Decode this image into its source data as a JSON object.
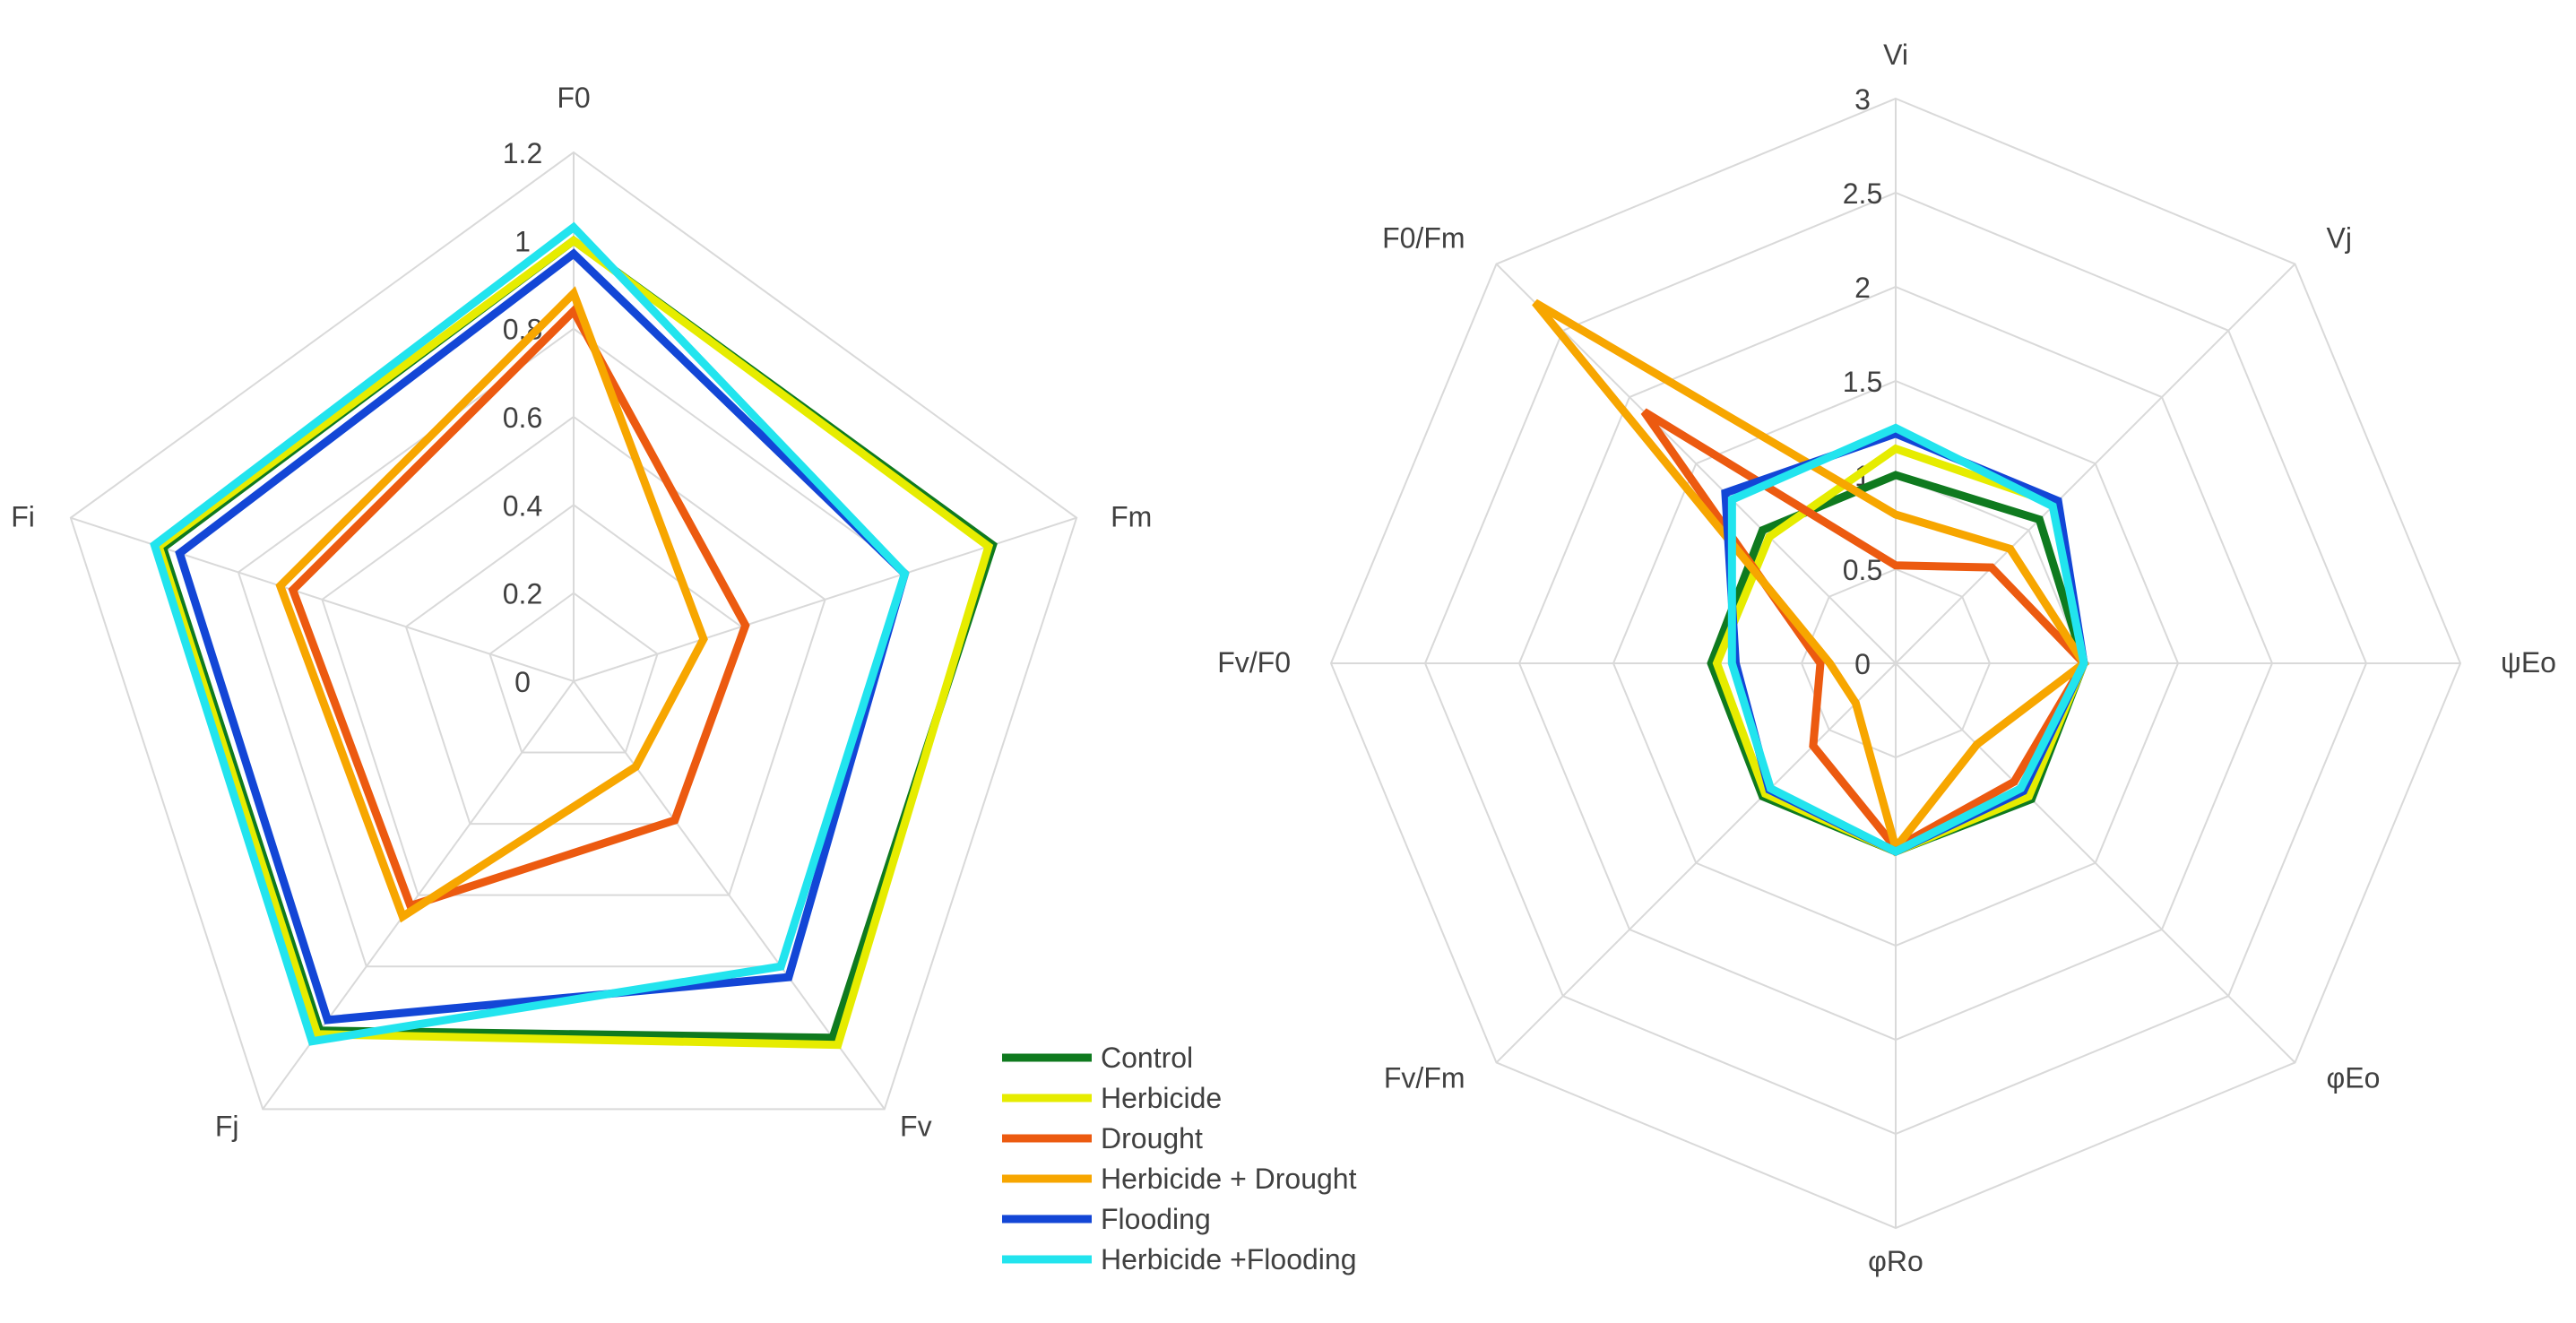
{
  "chart_data": [
    {
      "type": "radar",
      "title": "",
      "axes": [
        "F0",
        "Fm",
        "Fv",
        "Fj",
        "Fi"
      ],
      "ticks": [
        "0",
        "0.2",
        "0.4",
        "0.6",
        "0.8",
        "1",
        "1.2"
      ],
      "rmin": 0,
      "rmax": 1.2,
      "series": [
        {
          "name": "Control",
          "color": "#0f7a1f",
          "values": [
            1.0,
            1.0,
            1.0,
            0.98,
            0.98
          ]
        },
        {
          "name": "Herbicide",
          "color": "#e6ec00",
          "values": [
            1.0,
            0.99,
            1.02,
            0.99,
            0.99
          ]
        },
        {
          "name": "Drought",
          "color": "#ec5a10",
          "values": [
            0.84,
            0.41,
            0.39,
            0.63,
            0.67
          ]
        },
        {
          "name": "Herbicide + Drought",
          "color": "#f7a600",
          "values": [
            0.88,
            0.31,
            0.24,
            0.66,
            0.7
          ]
        },
        {
          "name": "Flooding",
          "color": "#1346d6",
          "values": [
            0.97,
            0.79,
            0.83,
            0.95,
            0.94
          ]
        },
        {
          "name": "Herbicide +Flooding",
          "color": "#22e4ee",
          "values": [
            1.03,
            0.79,
            0.8,
            1.01,
            1.0
          ]
        }
      ]
    },
    {
      "type": "radar",
      "title": "",
      "axes": [
        "Vi",
        "Vj",
        "ψEo",
        "φEo",
        "φRo",
        "Fv/Fm",
        "Fv/F0",
        "F0/Fm"
      ],
      "ticks": [
        "0",
        "0.5",
        "1",
        "1.5",
        "2",
        "2.5",
        "3"
      ],
      "rmin": 0,
      "rmax": 3,
      "series": [
        {
          "name": "Control",
          "color": "#0f7a1f",
          "values": [
            1.0,
            1.08,
            1.0,
            1.02,
            1.0,
            1.0,
            0.98,
            1.0
          ]
        },
        {
          "name": "Herbicide",
          "color": "#e6ec00",
          "values": [
            1.14,
            1.2,
            1.0,
            1.0,
            1.0,
            0.98,
            0.95,
            0.95
          ]
        },
        {
          "name": "Drought",
          "color": "#ec5a10",
          "values": [
            0.52,
            0.72,
            1.0,
            0.89,
            0.98,
            0.62,
            0.4,
            1.89
          ]
        },
        {
          "name": "Herbicide + Drought",
          "color": "#f7a600",
          "values": [
            0.79,
            0.86,
            1.0,
            0.61,
            0.98,
            0.3,
            0.35,
            2.71
          ]
        },
        {
          "name": "Flooding",
          "color": "#1346d6",
          "values": [
            1.22,
            1.22,
            1.0,
            0.96,
            1.0,
            0.95,
            0.85,
            1.28
          ]
        },
        {
          "name": "Herbicide +Flooding",
          "color": "#22e4ee",
          "values": [
            1.25,
            1.18,
            1.0,
            0.94,
            1.0,
            0.94,
            0.87,
            1.23
          ]
        }
      ]
    }
  ],
  "legend": [
    {
      "label": "Control",
      "color": "#0f7a1f"
    },
    {
      "label": "Herbicide",
      "color": "#e6ec00"
    },
    {
      "label": "Drought",
      "color": "#ec5a10"
    },
    {
      "label": "Herbicide + Drought",
      "color": "#f7a600"
    },
    {
      "label": "Flooding",
      "color": "#1346d6"
    },
    {
      "label": "Herbicide +Flooding",
      "color": "#22e4ee"
    }
  ]
}
